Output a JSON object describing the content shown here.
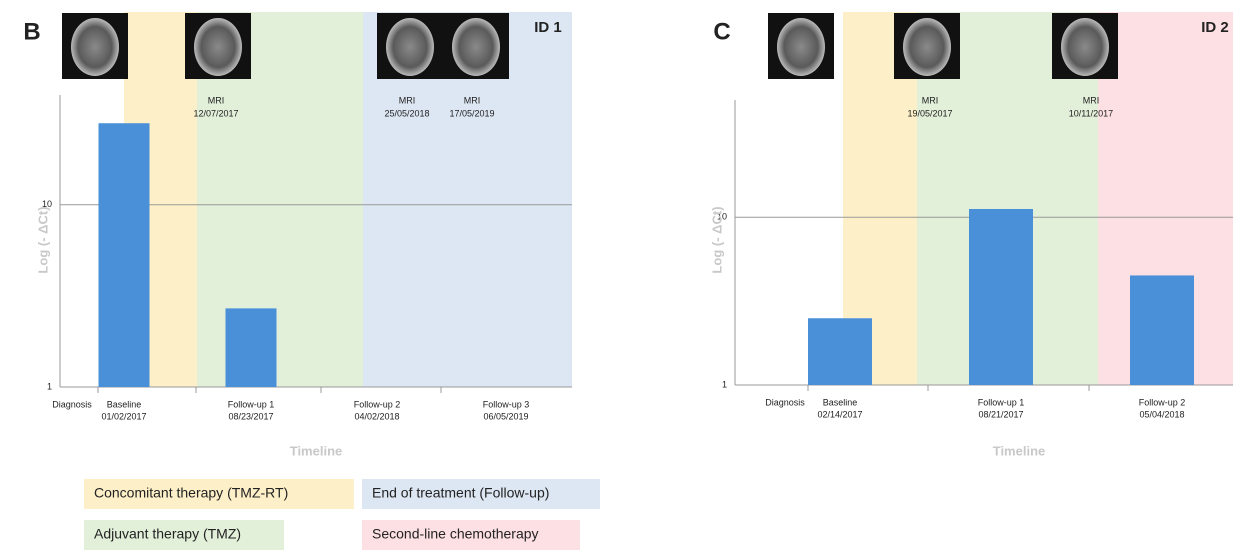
{
  "chart_data": [
    {
      "type": "bar",
      "panel_label": "B",
      "title": "ID 1",
      "y_label": "Log (- ΔCt)",
      "x_label": "Timeline",
      "categories": [
        "Diagnosis",
        "Baseline",
        "Follow-up 1",
        "Follow-up 2",
        "Follow-up 3"
      ],
      "category_dates": [
        null,
        "01/02/2017",
        "08/23/2017",
        "04/02/2018",
        "06/05/2019"
      ],
      "values": [
        null,
        28,
        2.7,
        null,
        null
      ],
      "color": "#4a90d9",
      "log_scale": true,
      "ylim": [
        1,
        40
      ],
      "yticks": [
        1,
        10
      ],
      "grid": true,
      "annotations": [
        {
          "label": "MRI",
          "date": "12/07/2017"
        },
        {
          "label": "MRI",
          "date": "25/05/2018"
        },
        {
          "label": "MRI",
          "date": "17/05/2019"
        }
      ]
    },
    {
      "type": "bar",
      "panel_label": "C",
      "title": "ID 2",
      "y_label": "Log (- ΔCt)",
      "x_label": "Timeline",
      "categories": [
        "Diagnosis",
        "Baseline",
        "Follow-up 1",
        "Follow-up 2"
      ],
      "category_dates": [
        null,
        "02/14/2017",
        "08/21/2017",
        "05/04/2018"
      ],
      "values": [
        null,
        2.5,
        11.2,
        4.5
      ],
      "color": "#4a90d9",
      "log_scale": true,
      "ylim": [
        1,
        50
      ],
      "yticks": [
        1,
        10
      ],
      "grid": true,
      "annotations": [
        {
          "label": "MRI",
          "date": "19/05/2017"
        },
        {
          "label": "MRI",
          "date": "10/11/2017"
        }
      ]
    }
  ],
  "legend": [
    {
      "name": "Concomitant therapy (TMZ-RT)",
      "color": "#fdf0c8"
    },
    {
      "name": "End of treatment (Follow-up)",
      "color": "#dde7f3"
    },
    {
      "name": "Adjuvant therapy (TMZ)",
      "color": "#e2efd9"
    },
    {
      "name": "Second-line chemotherapy",
      "color": "#fde0e3"
    }
  ]
}
